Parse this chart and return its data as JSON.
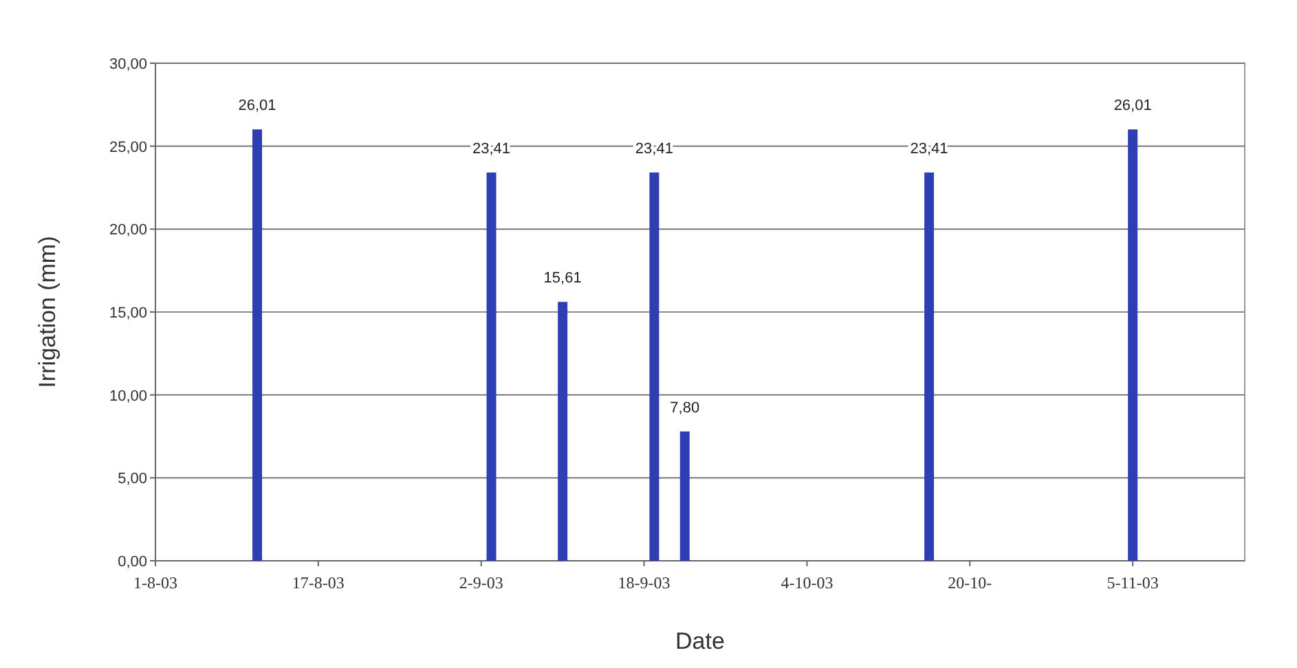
{
  "chart_data": {
    "type": "bar",
    "xlabel": "Date",
    "ylabel": "Irrigation (mm)",
    "x": [
      "2003-08-11",
      "2003-09-03",
      "2003-09-10",
      "2003-09-19",
      "2003-09-22",
      "2003-10-16",
      "2003-11-05"
    ],
    "series": [
      {
        "color": "#2e3fb4",
        "values": [
          26.01,
          23.41,
          15.61,
          23.41,
          7.8,
          23.41,
          26.01
        ]
      }
    ],
    "value_labels": [
      "26,01",
      "23,41",
      "15,61",
      "23,41",
      "7,80",
      "23,41",
      "26,01"
    ],
    "xlim": [
      "2003-08-01",
      "2003-11-16"
    ],
    "xticks": [
      {
        "value": "2003-08-01",
        "label": "1-8-03"
      },
      {
        "value": "2003-08-17",
        "label": "17-8-03"
      },
      {
        "value": "2003-09-02",
        "label": "2-9-03"
      },
      {
        "value": "2003-09-18",
        "label": "18-9-03"
      },
      {
        "value": "2003-10-04",
        "label": "4-10-03"
      },
      {
        "value": "2003-10-20",
        "label": "20-10-"
      },
      {
        "value": "2003-11-05",
        "label": "5-11-03"
      }
    ],
    "ylim": [
      0,
      30
    ],
    "yticks": [
      {
        "value": 0,
        "label": "0,00"
      },
      {
        "value": 5,
        "label": "5,00"
      },
      {
        "value": 10,
        "label": "10,00"
      },
      {
        "value": 15,
        "label": "15,00"
      },
      {
        "value": 20,
        "label": "20,00"
      },
      {
        "value": 25,
        "label": "25,00"
      },
      {
        "value": 30,
        "label": "30,00"
      }
    ],
    "grid": "y"
  }
}
